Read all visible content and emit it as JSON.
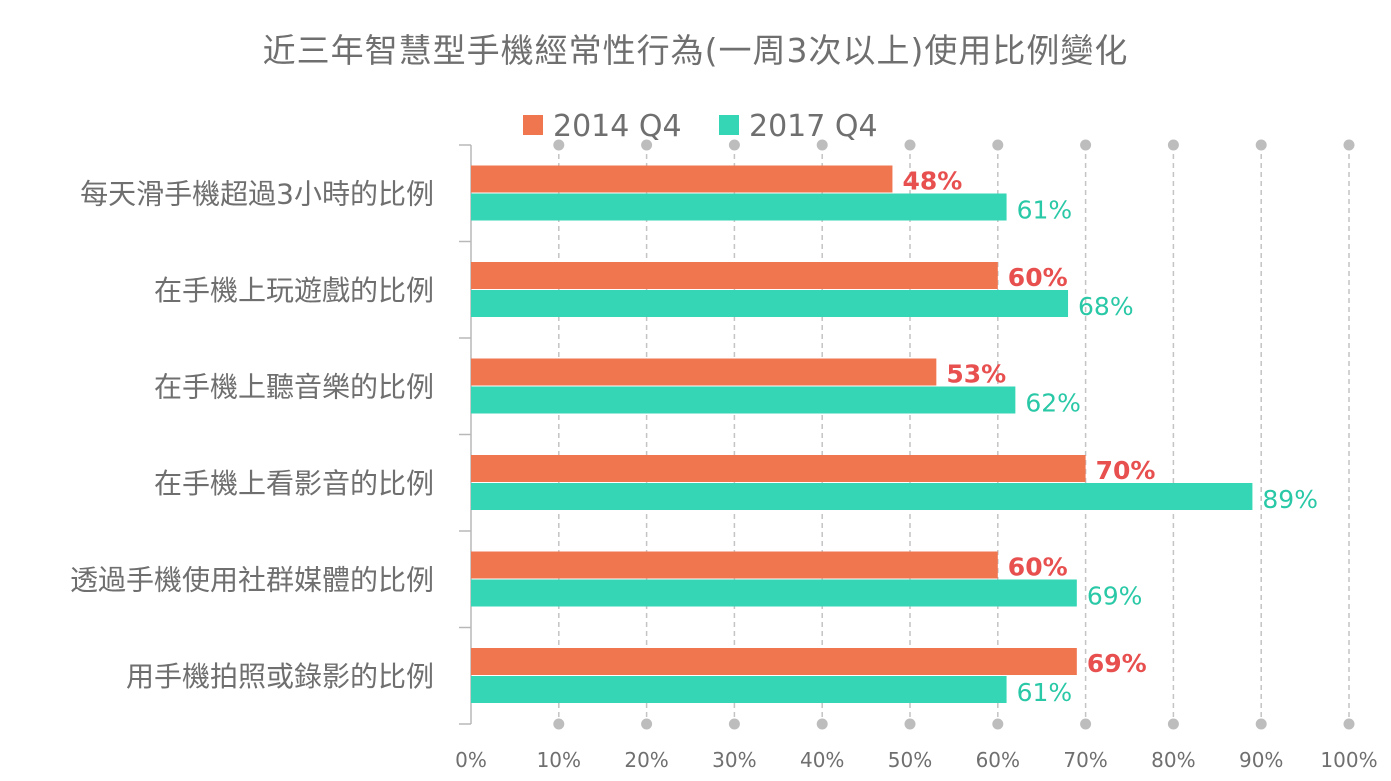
{
  "chart_data": {
    "type": "bar",
    "orientation": "horizontal",
    "title": "近三年智慧型手機經常性行為(一周3次以上)使用比例變化",
    "categories": [
      "每天滑手機超過3小時的比例",
      "在手機上玩遊戲的比例",
      "在手機上聽音樂的比例",
      "在手機上看影音的比例",
      "透過手機使用社群媒體的比例",
      "用手機拍照或錄影的比例"
    ],
    "series": [
      {
        "name": "2014 Q4",
        "values": [
          48,
          60,
          53,
          70,
          60,
          69
        ],
        "labels": [
          "48%",
          "60%",
          "53%",
          "70%",
          "60%",
          "69%"
        ]
      },
      {
        "name": "2017 Q4",
        "values": [
          61,
          68,
          62,
          89,
          69,
          61
        ],
        "labels": [
          "61%",
          "68%",
          "62%",
          "89%",
          "69%",
          "61%"
        ]
      }
    ],
    "xlim": [
      0,
      100
    ],
    "xticks": [
      "0%",
      "10%",
      "20%",
      "30%",
      "40%",
      "50%",
      "60%",
      "70%",
      "80%",
      "90%",
      "100%"
    ],
    "grid": "vertical dashed",
    "legend": "top",
    "colors": {
      "2014 Q4": "#f07650",
      "2017 Q4": "#35d6b6"
    },
    "label_colors": {
      "2014 Q4": "#e84f4f",
      "2017 Q4": "#29c8a6"
    },
    "axis_color": "#b8b8b8",
    "text_color": "#6f6f6f"
  }
}
